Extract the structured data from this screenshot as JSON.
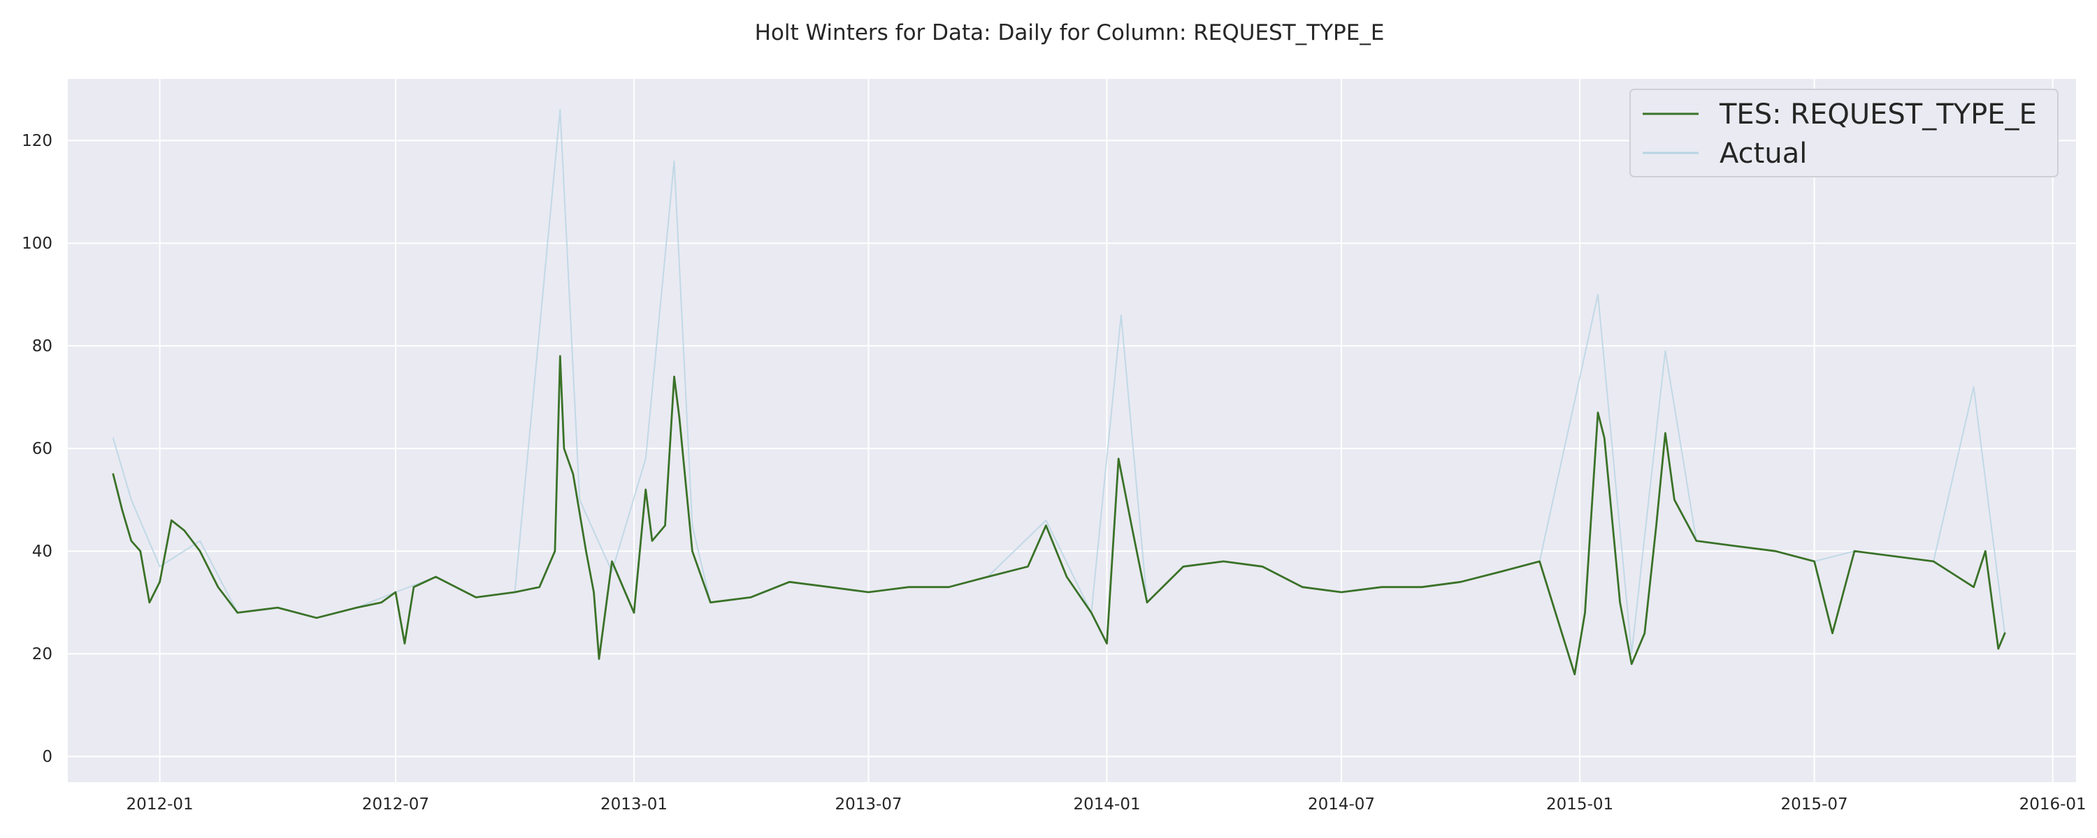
{
  "chart_data": {
    "type": "line",
    "title": "Holt Winters for Data: Daily for Column: REQUEST_TYPE_E",
    "xlabel": "",
    "ylabel": "",
    "x_axis": {
      "type": "date",
      "range": [
        "2011-10-22",
        "2016-01-19"
      ],
      "ticks": [
        "2012-01-01",
        "2012-07-01",
        "2013-01-01",
        "2013-07-01",
        "2014-01-01",
        "2014-07-01",
        "2015-01-01",
        "2015-07-01",
        "2016-01-01"
      ],
      "tick_labels": [
        "2012-01",
        "2012-07",
        "2013-01",
        "2013-07",
        "2014-01",
        "2014-07",
        "2015-01",
        "2015-07",
        "2016-01"
      ]
    },
    "y_axis": {
      "ylim": [
        -5,
        132
      ],
      "ticks": [
        0,
        20,
        40,
        60,
        80,
        100,
        120
      ],
      "tick_labels": [
        "0",
        "20",
        "40",
        "60",
        "80",
        "100",
        "120"
      ]
    },
    "grid": true,
    "legend_position": "top-right",
    "series": [
      {
        "name": "TES: REQUEST_TYPE_E",
        "color": "#3a7228",
        "points": [
          [
            "2011-11-26",
            55
          ],
          [
            "2011-12-03",
            48
          ],
          [
            "2011-12-10",
            42
          ],
          [
            "2011-12-17",
            40
          ],
          [
            "2011-12-24",
            30
          ],
          [
            "2012-01-01",
            34
          ],
          [
            "2012-01-10",
            46
          ],
          [
            "2012-01-20",
            44
          ],
          [
            "2012-02-01",
            40
          ],
          [
            "2012-02-15",
            33
          ],
          [
            "2012-03-01",
            28
          ],
          [
            "2012-04-01",
            29
          ],
          [
            "2012-05-01",
            27
          ],
          [
            "2012-06-01",
            29
          ],
          [
            "2012-06-20",
            30
          ],
          [
            "2012-07-01",
            32
          ],
          [
            "2012-07-08",
            22
          ],
          [
            "2012-07-15",
            33
          ],
          [
            "2012-08-01",
            35
          ],
          [
            "2012-09-01",
            31
          ],
          [
            "2012-10-01",
            32
          ],
          [
            "2012-10-20",
            33
          ],
          [
            "2012-11-01",
            40
          ],
          [
            "2012-11-05",
            78
          ],
          [
            "2012-11-08",
            60
          ],
          [
            "2012-11-15",
            55
          ],
          [
            "2012-11-25",
            40
          ],
          [
            "2012-12-01",
            32
          ],
          [
            "2012-12-05",
            19
          ],
          [
            "2012-12-15",
            38
          ],
          [
            "2013-01-01",
            28
          ],
          [
            "2013-01-10",
            52
          ],
          [
            "2013-01-15",
            42
          ],
          [
            "2013-01-25",
            45
          ],
          [
            "2013-02-01",
            74
          ],
          [
            "2013-02-05",
            66
          ],
          [
            "2013-02-15",
            40
          ],
          [
            "2013-03-01",
            30
          ],
          [
            "2013-04-01",
            31
          ],
          [
            "2013-05-01",
            34
          ],
          [
            "2013-06-01",
            33
          ],
          [
            "2013-07-01",
            32
          ],
          [
            "2013-08-01",
            33
          ],
          [
            "2013-09-01",
            33
          ],
          [
            "2013-10-01",
            35
          ],
          [
            "2013-11-01",
            37
          ],
          [
            "2013-11-15",
            45
          ],
          [
            "2013-12-01",
            35
          ],
          [
            "2013-12-20",
            28
          ],
          [
            "2014-01-01",
            22
          ],
          [
            "2014-01-10",
            58
          ],
          [
            "2014-01-20",
            45
          ],
          [
            "2014-02-01",
            30
          ],
          [
            "2014-03-01",
            37
          ],
          [
            "2014-04-01",
            38
          ],
          [
            "2014-05-01",
            37
          ],
          [
            "2014-06-01",
            33
          ],
          [
            "2014-07-01",
            32
          ],
          [
            "2014-08-01",
            33
          ],
          [
            "2014-09-01",
            33
          ],
          [
            "2014-10-01",
            34
          ],
          [
            "2014-11-01",
            36
          ],
          [
            "2014-12-01",
            38
          ],
          [
            "2014-12-28",
            16
          ],
          [
            "2015-01-05",
            28
          ],
          [
            "2015-01-15",
            67
          ],
          [
            "2015-01-20",
            62
          ],
          [
            "2015-02-01",
            30
          ],
          [
            "2015-02-10",
            18
          ],
          [
            "2015-02-20",
            24
          ],
          [
            "2015-03-01",
            45
          ],
          [
            "2015-03-08",
            63
          ],
          [
            "2015-03-15",
            50
          ],
          [
            "2015-04-01",
            42
          ],
          [
            "2015-05-01",
            41
          ],
          [
            "2015-06-01",
            40
          ],
          [
            "2015-07-01",
            38
          ],
          [
            "2015-07-15",
            24
          ],
          [
            "2015-08-01",
            40
          ],
          [
            "2015-09-01",
            39
          ],
          [
            "2015-10-01",
            38
          ],
          [
            "2015-11-01",
            33
          ],
          [
            "2015-11-10",
            40
          ],
          [
            "2015-11-20",
            21
          ],
          [
            "2015-11-25",
            24
          ]
        ]
      },
      {
        "name": "Actual",
        "color": "#b7d4e2",
        "points": [
          [
            "2011-11-26",
            62
          ],
          [
            "2011-12-10",
            50
          ],
          [
            "2012-01-01",
            37
          ],
          [
            "2012-02-01",
            42
          ],
          [
            "2012-03-01",
            28
          ],
          [
            "2012-04-01",
            29
          ],
          [
            "2012-05-01",
            27
          ],
          [
            "2012-06-01",
            29
          ],
          [
            "2012-07-01",
            32
          ],
          [
            "2012-08-01",
            35
          ],
          [
            "2012-09-01",
            31
          ],
          [
            "2012-10-01",
            32
          ],
          [
            "2012-11-05",
            126
          ],
          [
            "2012-11-20",
            50
          ],
          [
            "2012-12-15",
            36
          ],
          [
            "2013-01-10",
            58
          ],
          [
            "2013-02-01",
            116
          ],
          [
            "2013-02-15",
            45
          ],
          [
            "2013-03-01",
            30
          ],
          [
            "2013-04-01",
            31
          ],
          [
            "2013-05-01",
            34
          ],
          [
            "2013-06-01",
            33
          ],
          [
            "2013-07-01",
            32
          ],
          [
            "2013-08-01",
            33
          ],
          [
            "2013-09-01",
            33
          ],
          [
            "2013-10-01",
            35
          ],
          [
            "2013-11-15",
            46
          ],
          [
            "2013-12-20",
            28
          ],
          [
            "2014-01-12",
            86
          ],
          [
            "2014-02-01",
            30
          ],
          [
            "2014-03-01",
            37
          ],
          [
            "2014-04-01",
            38
          ],
          [
            "2014-05-01",
            37
          ],
          [
            "2014-06-01",
            33
          ],
          [
            "2014-07-01",
            32
          ],
          [
            "2014-08-01",
            33
          ],
          [
            "2014-09-01",
            33
          ],
          [
            "2014-10-01",
            34
          ],
          [
            "2014-11-01",
            36
          ],
          [
            "2014-12-01",
            38
          ],
          [
            "2015-01-15",
            90
          ],
          [
            "2015-02-10",
            20
          ],
          [
            "2015-03-08",
            79
          ],
          [
            "2015-04-01",
            42
          ],
          [
            "2015-05-01",
            41
          ],
          [
            "2015-06-01",
            40
          ],
          [
            "2015-07-01",
            38
          ],
          [
            "2015-08-01",
            40
          ],
          [
            "2015-09-01",
            39
          ],
          [
            "2015-10-01",
            38
          ],
          [
            "2015-11-01",
            72
          ],
          [
            "2015-11-25",
            24
          ]
        ]
      }
    ]
  }
}
